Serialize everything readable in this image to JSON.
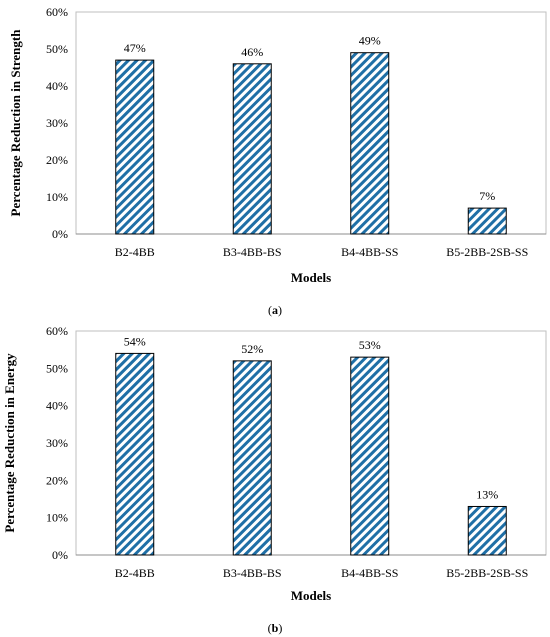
{
  "chart_data": [
    {
      "type": "bar",
      "categories": [
        "B2-4BB",
        "B3-4BB-BS",
        "B4-4BB-SS",
        "B5-2BB-2SB-SS"
      ],
      "values": [
        47,
        46,
        49,
        7
      ],
      "data_labels": [
        "47%",
        "46%",
        "49%",
        "7%"
      ],
      "xlabel": "Models",
      "ylabel": "Percentage Reduction in Strength",
      "ylim": [
        0,
        60
      ],
      "yticks": [
        "0%",
        "10%",
        "20%",
        "30%",
        "40%",
        "50%",
        "60%"
      ],
      "grid": false,
      "bar_fill": "diagonal-hatch",
      "bar_color": "#1f6fa6",
      "caption": {
        "open": "(",
        "letter": "a",
        "close": ")"
      }
    },
    {
      "type": "bar",
      "categories": [
        "B2-4BB",
        "B3-4BB-BS",
        "B4-4BB-SS",
        "B5-2BB-2SB-SS"
      ],
      "values": [
        54,
        52,
        53,
        13
      ],
      "data_labels": [
        "54%",
        "52%",
        "53%",
        "13%"
      ],
      "xlabel": "Models",
      "ylabel": "Percentage Reduction in Energy",
      "ylim": [
        0,
        60
      ],
      "yticks": [
        "0%",
        "10%",
        "20%",
        "30%",
        "40%",
        "50%",
        "60%"
      ],
      "grid": false,
      "bar_fill": "diagonal-hatch",
      "bar_color": "#1f6fa6",
      "caption": {
        "open": "(",
        "letter": "b",
        "close": ")"
      }
    }
  ]
}
